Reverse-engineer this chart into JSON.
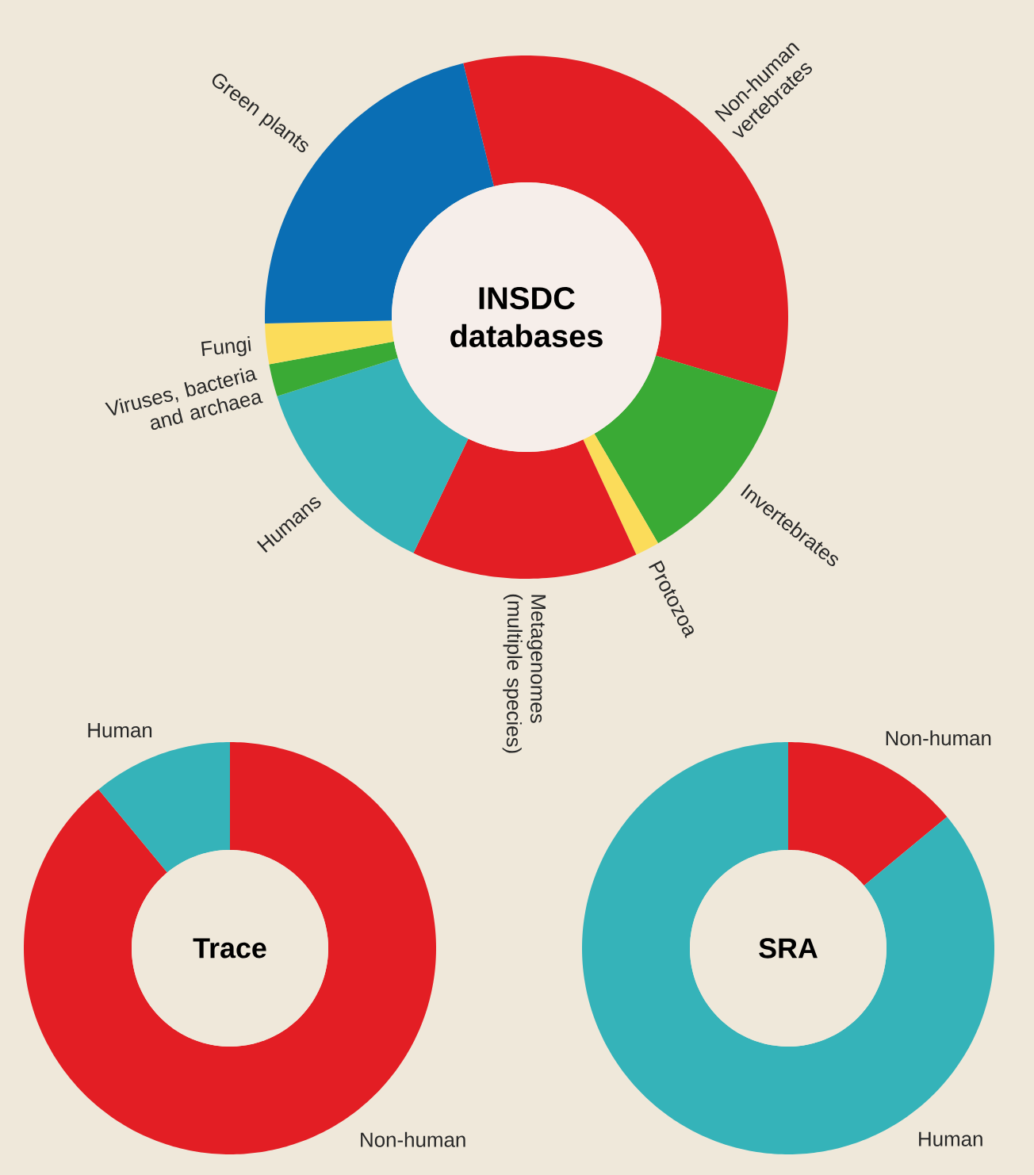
{
  "chart_data": [
    {
      "type": "donut",
      "title": "INSDC databases",
      "categories": [
        "Non-human vertebrates",
        "Invertebrates",
        "Protozoa",
        "Metagenomes (multiple species)",
        "Humans",
        "Viruses, bacteria and archaea",
        "Fungi",
        "Green plants"
      ],
      "values": [
        33.5,
        12,
        1.5,
        14,
        13,
        2,
        2.5,
        21.5
      ],
      "colors": [
        "#e31e24",
        "#3aaa35",
        "#fbdc5a",
        "#e31e24",
        "#35b3b9",
        "#3aaa35",
        "#fbdc5a",
        "#0a6eb4"
      ]
    },
    {
      "type": "donut",
      "title": "Trace",
      "categories": [
        "Non-human",
        "Human"
      ],
      "values": [
        89,
        11
      ],
      "colors": [
        "#e31e24",
        "#35b3b9"
      ]
    },
    {
      "type": "donut",
      "title": "SRA",
      "categories": [
        "Non-human",
        "Human"
      ],
      "values": [
        14,
        86
      ],
      "colors": [
        "#e31e24",
        "#35b3b9"
      ]
    }
  ]
}
